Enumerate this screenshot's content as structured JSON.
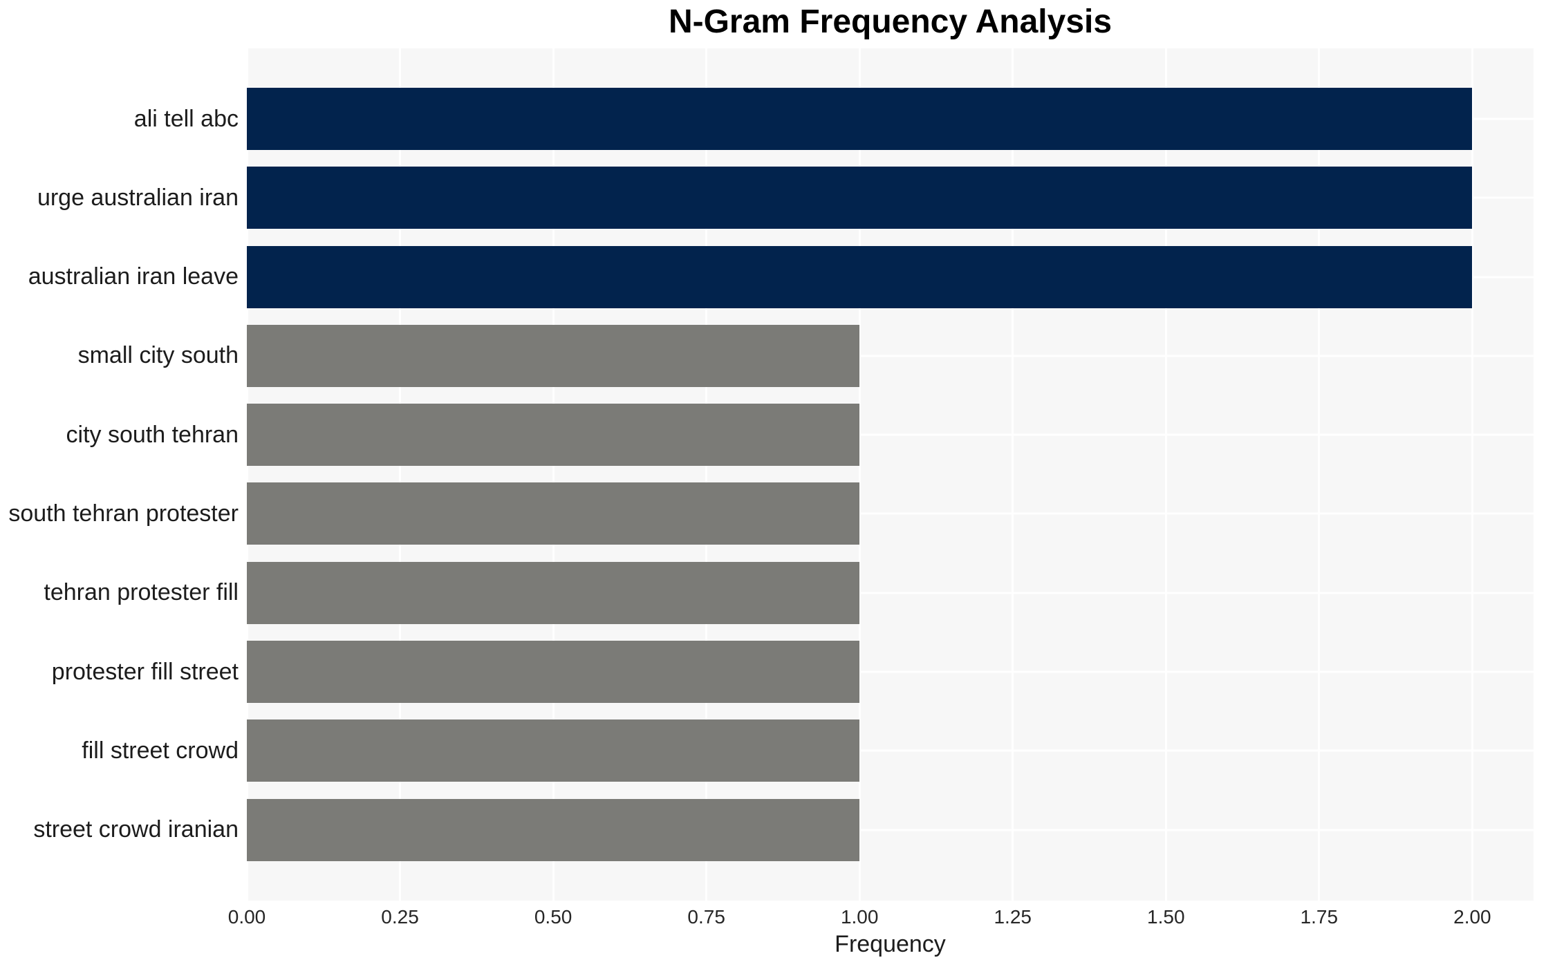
{
  "chart_data": {
    "type": "bar",
    "orientation": "horizontal",
    "title": "N-Gram Frequency Analysis",
    "xlabel": "Frequency",
    "ylabel": "",
    "categories": [
      "ali tell abc",
      "urge australian iran",
      "australian iran leave",
      "small city south",
      "city south tehran",
      "south tehran protester",
      "tehran protester fill",
      "protester fill street",
      "fill street crowd",
      "street crowd iranian"
    ],
    "values": [
      2,
      2,
      2,
      1,
      1,
      1,
      1,
      1,
      1,
      1
    ],
    "bar_colors": [
      "#02234d",
      "#02234d",
      "#02234d",
      "#7b7b77",
      "#7b7b77",
      "#7b7b77",
      "#7b7b77",
      "#7b7b77",
      "#7b7b77",
      "#7b7b77"
    ],
    "xlim": [
      0,
      2.1
    ],
    "xtick_values": [
      0,
      0.25,
      0.5,
      0.75,
      1.0,
      1.25,
      1.5,
      1.75,
      2.0
    ],
    "xtick_labels": [
      "0.00",
      "0.25",
      "0.50",
      "0.75",
      "1.00",
      "1.25",
      "1.50",
      "1.75",
      "2.00"
    ],
    "grid": true,
    "legend": "none",
    "colors": {
      "navy_bar": "#02234d",
      "gray_bar": "#7b7b77",
      "panel_background": "#f7f7f7",
      "grid_line": "#ffffff",
      "title_text": "#000000",
      "label_text": "#1c1c1c",
      "tick_text": "#262626"
    }
  }
}
